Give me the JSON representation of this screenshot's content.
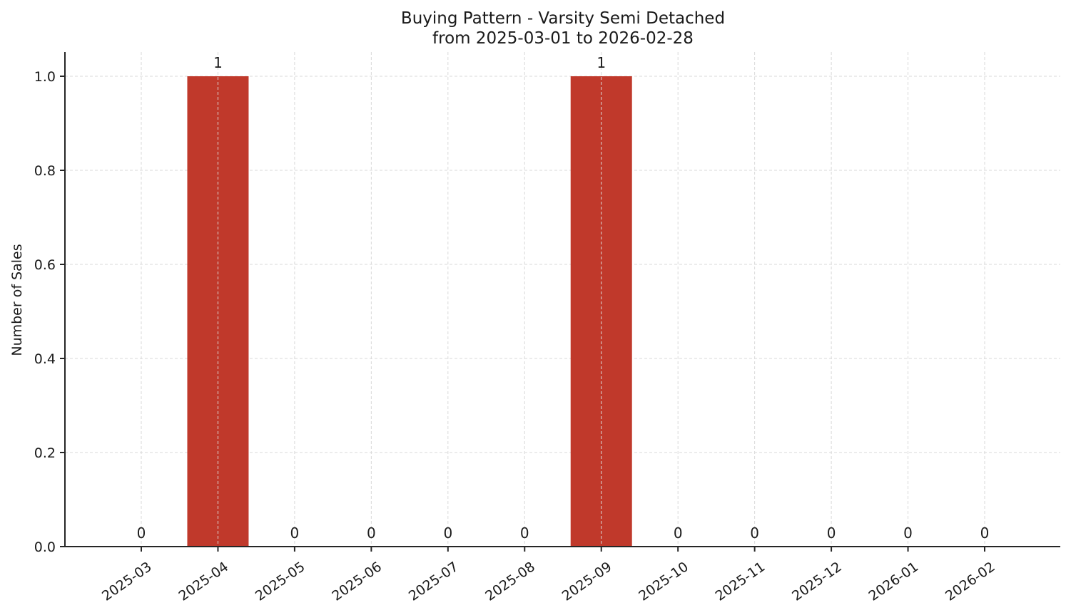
{
  "chart_data": {
    "type": "bar",
    "title": "Buying Pattern - Varsity Semi Detached",
    "subtitle": "from 2025-03-01 to 2026-02-28",
    "xlabel": "",
    "ylabel": "Number of Sales",
    "categories": [
      "2025-03",
      "2025-04",
      "2025-05",
      "2025-06",
      "2025-07",
      "2025-08",
      "2025-09",
      "2025-10",
      "2025-11",
      "2025-12",
      "2026-01",
      "2026-02"
    ],
    "values": [
      0,
      1,
      0,
      0,
      0,
      0,
      1,
      0,
      0,
      0,
      0,
      0
    ],
    "data_labels": [
      "0",
      "1",
      "0",
      "0",
      "0",
      "0",
      "1",
      "0",
      "0",
      "0",
      "0",
      "0"
    ],
    "ylim": [
      0,
      1.05
    ],
    "yticks": [
      "0.0",
      "0.2",
      "0.4",
      "0.6",
      "0.8",
      "1.0"
    ],
    "ytick_values": [
      0,
      0.2,
      0.4,
      0.6,
      0.8,
      1.0
    ],
    "grid": true,
    "legend": null,
    "bar_color": "#c0392b",
    "grid_color": "#d9d9d9",
    "axis_color": "#262626"
  }
}
